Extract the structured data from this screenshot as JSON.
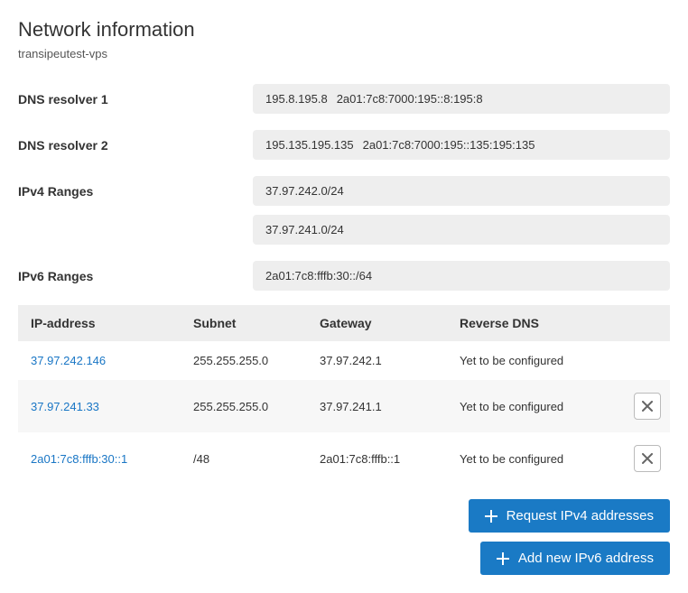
{
  "header": {
    "title": "Network information",
    "subtitle": "transipeutest-vps"
  },
  "info": {
    "dns1_label": "DNS resolver 1",
    "dns1_v4": "195.8.195.8",
    "dns1_v6": "2a01:7c8:7000:195::8:195:8",
    "dns2_label": "DNS resolver 2",
    "dns2_v4": "195.135.195.135",
    "dns2_v6": "2a01:7c8:7000:195::135:195:135",
    "ipv4ranges_label": "IPv4 Ranges",
    "ipv4range_1": "37.97.242.0/24",
    "ipv4range_2": "37.97.241.0/24",
    "ipv6ranges_label": "IPv6 Ranges",
    "ipv6range_1": "2a01:7c8:fffb:30::/64"
  },
  "table": {
    "headers": {
      "ip": "IP-address",
      "subnet": "Subnet",
      "gateway": "Gateway",
      "rdns": "Reverse DNS"
    },
    "rows": [
      {
        "ip": "37.97.242.146",
        "subnet": "255.255.255.0",
        "gateway": "37.97.242.1",
        "rdns": "Yet to be configured",
        "deletable": false
      },
      {
        "ip": "37.97.241.33",
        "subnet": "255.255.255.0",
        "gateway": "37.97.241.1",
        "rdns": "Yet to be configured",
        "deletable": true
      },
      {
        "ip": "2a01:7c8:fffb:30::1",
        "subnet": "/48",
        "gateway": "2a01:7c8:fffb::1",
        "rdns": "Yet to be configured",
        "deletable": true
      }
    ]
  },
  "buttons": {
    "request_ipv4": "Request IPv4 addresses",
    "add_ipv6": "Add new IPv6 address"
  },
  "colors": {
    "primary": "#1a7ac5",
    "link": "#1976c5",
    "box_bg": "#eeeeee",
    "alt_row": "#f7f7f7",
    "text": "#333333"
  }
}
